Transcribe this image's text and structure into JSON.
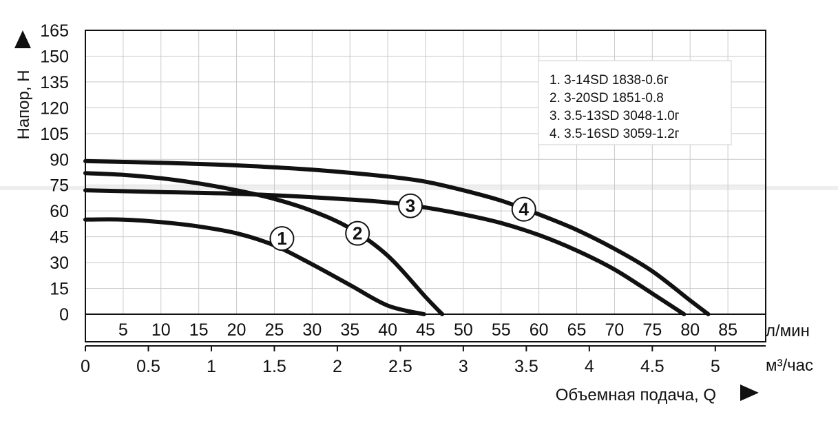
{
  "chart_data": {
    "type": "line",
    "ylabel": "Напор, H",
    "xlabel": "Объемная подача, Q",
    "x_unit_primary": "л/мин",
    "x_unit_secondary": "м³/час",
    "xlim": [
      0,
      90
    ],
    "ylim": [
      0,
      165
    ],
    "yticks": [
      0,
      15,
      30,
      45,
      60,
      75,
      90,
      105,
      120,
      135,
      150,
      165
    ],
    "xticks_primary": [
      5,
      10,
      15,
      20,
      25,
      30,
      35,
      40,
      45,
      50,
      55,
      60,
      65,
      70,
      75,
      80,
      85
    ],
    "xticks_secondary": [
      {
        "value": 0,
        "label": "0"
      },
      {
        "value": 0.5,
        "label": "0.5"
      },
      {
        "value": 1,
        "label": "1"
      },
      {
        "value": 1.5,
        "label": "1.5"
      },
      {
        "value": 2,
        "label": "2"
      },
      {
        "value": 2.5,
        "label": "2.5"
      },
      {
        "value": 3,
        "label": "3"
      },
      {
        "value": 3.5,
        "label": "3.5"
      },
      {
        "value": 4,
        "label": "4"
      },
      {
        "value": 4.5,
        "label": "4.5"
      },
      {
        "value": 5,
        "label": "5"
      }
    ],
    "grid": true,
    "legend": {
      "placement": "top-right",
      "entries": [
        "1. 3-14SD 1838-0.6г",
        "2. 3-20SD 1851-0.8",
        "3. 3.5-13SD 3048-1.0г",
        "4. 3.5-16SD 3059-1.2г"
      ]
    },
    "series": [
      {
        "marker": "1",
        "marker_at": [
          26,
          44
        ],
        "x": [
          0,
          5,
          10,
          15,
          20,
          25,
          30,
          35,
          40,
          44.8
        ],
        "y": [
          55,
          55,
          53.5,
          51,
          47,
          40,
          29,
          17,
          5,
          0
        ]
      },
      {
        "marker": "2",
        "marker_at": [
          36,
          47
        ],
        "x": [
          0,
          5,
          10,
          15,
          20,
          25,
          30,
          35,
          40,
          45,
          47.2
        ],
        "y": [
          82,
          81,
          79,
          76,
          72,
          67,
          60,
          50,
          34,
          10,
          0
        ]
      },
      {
        "marker": "3",
        "marker_at": [
          43,
          63
        ],
        "x": [
          0,
          10,
          20,
          30,
          40,
          45,
          50,
          55,
          60,
          65,
          70,
          75,
          79.2
        ],
        "y": [
          72,
          71,
          70,
          68,
          65,
          62,
          58,
          53,
          46,
          37,
          26,
          12,
          0
        ]
      },
      {
        "marker": "4",
        "marker_at": [
          58,
          61
        ],
        "x": [
          0,
          10,
          20,
          30,
          40,
          45,
          50,
          55,
          60,
          65,
          70,
          75,
          80,
          82.4
        ],
        "y": [
          89,
          88,
          86.5,
          84,
          80,
          77,
          72,
          66,
          58,
          49,
          38,
          25,
          8,
          0
        ]
      }
    ]
  }
}
